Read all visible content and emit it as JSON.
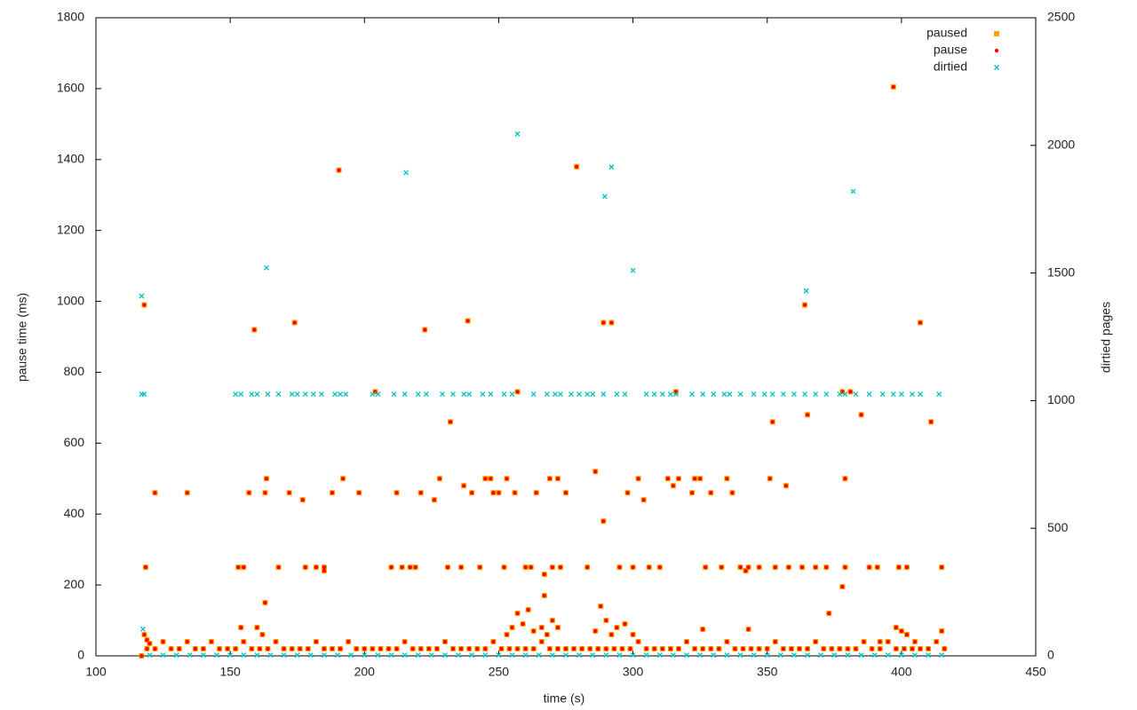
{
  "chart_data": {
    "type": "scatter",
    "xlabel": "time (s)",
    "ylabel": "pause time (ms)",
    "y2label": "dirtied pages",
    "xlim": [
      100,
      450
    ],
    "xticks": [
      100,
      150,
      200,
      250,
      300,
      350,
      400,
      450
    ],
    "ylim": [
      0,
      1800
    ],
    "yticks": [
      0,
      200,
      400,
      600,
      800,
      1000,
      1200,
      1400,
      1600,
      1800
    ],
    "y2lim": [
      0,
      2500
    ],
    "y2ticks": [
      0,
      500,
      1000,
      1500,
      2000,
      2500
    ],
    "grid": false,
    "legend": "top right",
    "series": [
      {
        "name": "paused",
        "color": "#ffa500",
        "marker": "square",
        "x": [
          118,
          118.5,
          122,
          134,
          153,
          155,
          157,
          159,
          163,
          163.5,
          163,
          168,
          172,
          174,
          177,
          178,
          182,
          185,
          185,
          188,
          190.5,
          192,
          198,
          204,
          210,
          212,
          214,
          217,
          219,
          221,
          222.5,
          226,
          228,
          231,
          232,
          236,
          237,
          238.5,
          240,
          243,
          245,
          247,
          248,
          250,
          252,
          253,
          256,
          257,
          260,
          262,
          264,
          267,
          267,
          269,
          270,
          272,
          273,
          275,
          279,
          283,
          286,
          289,
          289,
          292,
          295,
          298,
          300,
          302,
          304,
          306,
          310,
          313,
          315,
          316,
          317,
          322,
          323,
          325,
          327,
          329,
          333,
          335,
          337,
          340,
          342,
          343,
          347,
          351,
          352,
          353,
          357,
          358,
          363,
          364,
          365,
          368,
          372,
          373,
          378,
          378,
          379,
          379,
          381,
          385,
          388,
          391,
          397,
          399,
          402,
          407,
          411,
          415,
          119,
          122,
          125,
          128,
          131,
          134,
          137,
          140,
          143,
          146,
          149,
          152,
          155,
          158,
          161,
          164,
          167,
          170,
          173,
          176,
          179,
          182,
          185,
          188,
          191,
          194,
          197,
          200,
          203,
          206,
          209,
          212,
          215,
          218,
          221,
          224,
          227,
          230,
          233,
          236,
          239,
          242,
          245,
          248,
          251,
          254,
          257,
          260,
          263,
          266,
          269,
          272,
          275,
          278,
          281,
          284,
          287,
          290,
          293,
          296,
          299,
          302,
          305,
          308,
          311,
          314,
          317,
          320,
          323,
          326,
          329,
          332,
          335,
          338,
          341,
          344,
          347,
          350,
          353,
          356,
          359,
          362,
          365,
          368,
          371,
          374,
          377,
          380,
          383,
          386,
          389,
          392,
          395,
          398,
          401,
          404,
          407,
          410,
          413,
          416,
          253,
          255,
          257,
          259,
          261,
          263,
          266,
          268,
          270,
          272,
          286,
          288,
          290,
          292,
          294,
          297,
          300,
          398,
          400,
          402,
          405,
          415,
          160,
          162,
          154,
          117,
          118,
          119,
          120,
          326,
          343,
          392
        ],
        "values": [
          990,
          250,
          460,
          460,
          250,
          250,
          460,
          920,
          460,
          500,
          150,
          250,
          460,
          940,
          440,
          250,
          250,
          250,
          240,
          460,
          1370,
          500,
          460,
          745,
          250,
          460,
          250,
          250,
          250,
          460,
          920,
          440,
          500,
          250,
          660,
          250,
          480,
          945,
          460,
          250,
          500,
          500,
          460,
          460,
          250,
          500,
          460,
          745,
          250,
          250,
          460,
          230,
          170,
          500,
          250,
          500,
          250,
          460,
          1380,
          250,
          520,
          380,
          940,
          940,
          250,
          460,
          250,
          500,
          440,
          250,
          250,
          500,
          480,
          745,
          500,
          460,
          500,
          500,
          250,
          460,
          250,
          500,
          460,
          250,
          240,
          250,
          250,
          500,
          660,
          250,
          480,
          250,
          250,
          990,
          680,
          250,
          250,
          120,
          195,
          745,
          250,
          500,
          745,
          680,
          250,
          250,
          1605,
          250,
          250,
          940,
          660,
          250,
          20,
          20,
          40,
          20,
          20,
          40,
          20,
          20,
          40,
          20,
          20,
          20,
          40,
          20,
          20,
          20,
          40,
          20,
          20,
          20,
          20,
          40,
          20,
          20,
          20,
          40,
          20,
          20,
          20,
          20,
          20,
          20,
          40,
          20,
          20,
          20,
          20,
          40,
          20,
          20,
          20,
          20,
          20,
          40,
          20,
          20,
          20,
          20,
          20,
          40,
          20,
          20,
          20,
          20,
          20,
          20,
          20,
          20,
          20,
          20,
          20,
          40,
          20,
          20,
          20,
          20,
          20,
          40,
          20,
          20,
          20,
          20,
          40,
          20,
          20,
          20,
          20,
          20,
          40,
          20,
          20,
          20,
          20,
          40,
          20,
          20,
          20,
          20,
          20,
          40,
          20,
          20,
          40,
          20,
          20,
          20,
          20,
          20,
          40,
          20,
          60,
          80,
          120,
          90,
          130,
          70,
          80,
          60,
          100,
          80,
          70,
          140,
          100,
          60,
          80,
          90,
          60,
          80,
          70,
          60,
          40,
          70,
          80,
          60,
          80,
          0,
          60,
          45,
          35,
          75,
          75,
          40
        ]
      },
      {
        "name": "pause",
        "color": "#ff0000",
        "marker": "dot",
        "x": [
          118,
          118.5,
          122,
          134,
          153,
          155,
          157,
          159,
          163,
          163.5,
          163,
          168,
          172,
          174,
          177,
          178,
          182,
          185,
          185,
          188,
          190.5,
          192,
          198,
          204,
          210,
          212,
          214,
          217,
          219,
          221,
          222.5,
          226,
          228,
          231,
          232,
          236,
          237,
          238.5,
          240,
          243,
          245,
          247,
          248,
          250,
          252,
          253,
          256,
          257,
          260,
          262,
          264,
          267,
          267,
          269,
          270,
          272,
          273,
          275,
          279,
          283,
          286,
          289,
          289,
          292,
          295,
          298,
          300,
          302,
          304,
          306,
          310,
          313,
          315,
          316,
          317,
          322,
          323,
          325,
          327,
          329,
          333,
          335,
          337,
          340,
          342,
          343,
          347,
          351,
          352,
          353,
          357,
          358,
          363,
          364,
          365,
          368,
          372,
          373,
          378,
          378,
          379,
          379,
          381,
          385,
          388,
          391,
          397,
          399,
          402,
          407,
          411,
          415,
          119,
          122,
          125,
          128,
          131,
          134,
          137,
          140,
          143,
          146,
          149,
          152,
          155,
          158,
          161,
          164,
          167,
          170,
          173,
          176,
          179,
          182,
          185,
          188,
          191,
          194,
          197,
          200,
          203,
          206,
          209,
          212,
          215,
          218,
          221,
          224,
          227,
          230,
          233,
          236,
          239,
          242,
          245,
          248,
          251,
          254,
          257,
          260,
          263,
          266,
          269,
          272,
          275,
          278,
          281,
          284,
          287,
          290,
          293,
          296,
          299,
          302,
          305,
          308,
          311,
          314,
          317,
          320,
          323,
          326,
          329,
          332,
          335,
          338,
          341,
          344,
          347,
          350,
          353,
          356,
          359,
          362,
          365,
          368,
          371,
          374,
          377,
          380,
          383,
          386,
          389,
          392,
          395,
          398,
          401,
          404,
          407,
          410,
          413,
          416,
          253,
          255,
          257,
          259,
          261,
          263,
          266,
          268,
          270,
          272,
          286,
          288,
          290,
          292,
          294,
          297,
          300,
          398,
          400,
          402,
          405,
          415,
          160,
          162,
          154,
          117,
          118,
          119,
          120,
          326,
          343,
          392
        ],
        "values": [
          990,
          250,
          460,
          460,
          250,
          250,
          460,
          920,
          460,
          500,
          150,
          250,
          460,
          940,
          440,
          250,
          250,
          250,
          240,
          460,
          1370,
          500,
          460,
          745,
          250,
          460,
          250,
          250,
          250,
          460,
          920,
          440,
          500,
          250,
          660,
          250,
          480,
          945,
          460,
          250,
          500,
          500,
          460,
          460,
          250,
          500,
          460,
          745,
          250,
          250,
          460,
          230,
          170,
          500,
          250,
          500,
          250,
          460,
          1380,
          250,
          520,
          380,
          940,
          940,
          250,
          460,
          250,
          500,
          440,
          250,
          250,
          500,
          480,
          745,
          500,
          460,
          500,
          500,
          250,
          460,
          250,
          500,
          460,
          250,
          240,
          250,
          250,
          500,
          660,
          250,
          480,
          250,
          250,
          990,
          680,
          250,
          250,
          120,
          195,
          745,
          250,
          500,
          745,
          680,
          250,
          250,
          1605,
          250,
          250,
          940,
          660,
          250,
          20,
          20,
          40,
          20,
          20,
          40,
          20,
          20,
          40,
          20,
          20,
          20,
          40,
          20,
          20,
          20,
          40,
          20,
          20,
          20,
          20,
          40,
          20,
          20,
          20,
          40,
          20,
          20,
          20,
          20,
          20,
          20,
          40,
          20,
          20,
          20,
          20,
          40,
          20,
          20,
          20,
          20,
          20,
          40,
          20,
          20,
          20,
          20,
          20,
          40,
          20,
          20,
          20,
          20,
          20,
          20,
          20,
          20,
          20,
          20,
          20,
          40,
          20,
          20,
          20,
          20,
          20,
          40,
          20,
          20,
          20,
          20,
          40,
          20,
          20,
          20,
          20,
          20,
          40,
          20,
          20,
          20,
          20,
          40,
          20,
          20,
          20,
          20,
          20,
          40,
          20,
          20,
          40,
          20,
          20,
          20,
          20,
          20,
          40,
          20,
          60,
          80,
          120,
          90,
          130,
          70,
          80,
          60,
          100,
          80,
          70,
          140,
          100,
          60,
          80,
          90,
          60,
          80,
          70,
          60,
          40,
          70,
          80,
          60,
          80,
          0,
          60,
          45,
          35,
          75,
          75,
          40
        ]
      },
      {
        "name": "dirtied",
        "color": "#00c0c0",
        "marker": "cross",
        "axis": "y2",
        "x": [
          117,
          117,
          117.5,
          118,
          152,
          154,
          158,
          160,
          163.5,
          164,
          168,
          173,
          175,
          178,
          181,
          184,
          189,
          191,
          193,
          203,
          205,
          211,
          215,
          215.5,
          220,
          223,
          229,
          233,
          237,
          239,
          244,
          247,
          252,
          255,
          257,
          263,
          268,
          271,
          273,
          277,
          280,
          283,
          285,
          289,
          289.5,
          292,
          294,
          297,
          300,
          305,
          308,
          311,
          314,
          316,
          322,
          326,
          330,
          334,
          336,
          340,
          345,
          349,
          352,
          356,
          360,
          364,
          364.5,
          368,
          372,
          377,
          379,
          382,
          383,
          388,
          393,
          397,
          400,
          404,
          407,
          414,
          120,
          125,
          130,
          135,
          140,
          145,
          150,
          155,
          160,
          165,
          170,
          175,
          180,
          185,
          190,
          195,
          200,
          205,
          210,
          215,
          220,
          225,
          230,
          235,
          240,
          245,
          250,
          255,
          260,
          265,
          270,
          275,
          280,
          285,
          290,
          295,
          300,
          305,
          310,
          315,
          320,
          325,
          330,
          335,
          340,
          345,
          350,
          355,
          360,
          365,
          370,
          375,
          380,
          385,
          390,
          395,
          400,
          405,
          410,
          415
        ],
        "values": [
          1410,
          1025,
          105,
          1025,
          1025,
          1025,
          1025,
          1025,
          1520,
          1025,
          1025,
          1025,
          1025,
          1025,
          1025,
          1025,
          1025,
          1025,
          1025,
          1025,
          1025,
          1025,
          1025,
          1893,
          1025,
          1025,
          1025,
          1025,
          1025,
          1025,
          1025,
          1025,
          1025,
          1025,
          2045,
          1025,
          1025,
          1025,
          1025,
          1025,
          1025,
          1025,
          1025,
          1025,
          1800,
          1915,
          1025,
          1025,
          1510,
          1025,
          1025,
          1025,
          1025,
          1025,
          1025,
          1025,
          1025,
          1025,
          1025,
          1025,
          1025,
          1025,
          1025,
          1025,
          1025,
          1025,
          1430,
          1025,
          1025,
          1025,
          1025,
          1820,
          1025,
          1025,
          1025,
          1025,
          1025,
          1025,
          1025,
          1025,
          3,
          3,
          3,
          3,
          3,
          3,
          3,
          3,
          3,
          3,
          3,
          3,
          3,
          3,
          3,
          3,
          3,
          3,
          3,
          3,
          3,
          3,
          3,
          3,
          3,
          3,
          3,
          3,
          3,
          3,
          3,
          3,
          3,
          3,
          3,
          3,
          3,
          3,
          3,
          3,
          3,
          3,
          3,
          3,
          3,
          3,
          3,
          3,
          3,
          3,
          3,
          3,
          3,
          3,
          3,
          3,
          3,
          3,
          3,
          3
        ]
      }
    ]
  }
}
